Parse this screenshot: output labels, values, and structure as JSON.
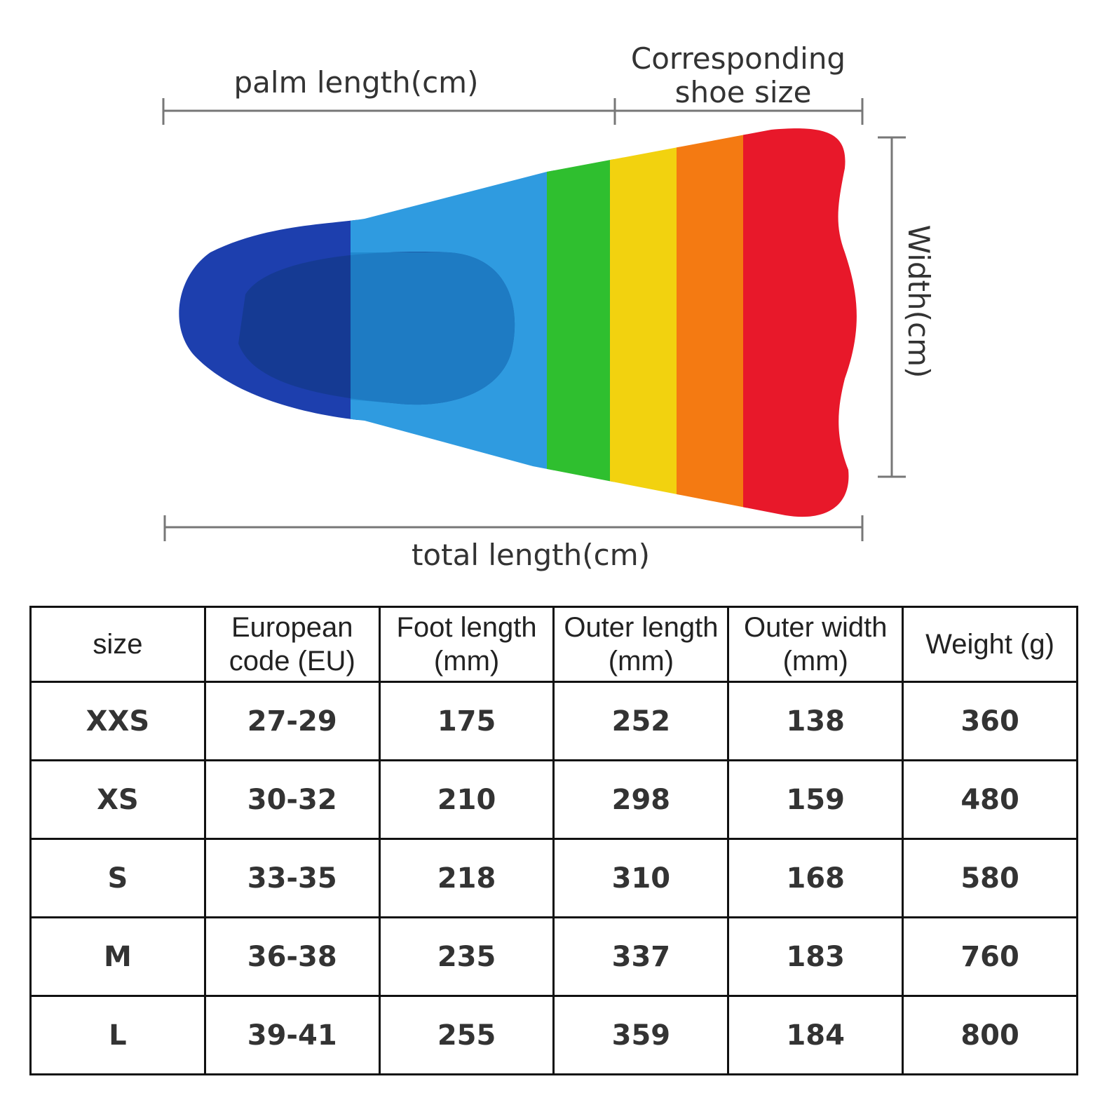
{
  "diagram": {
    "palm_label": "palm length(cm)",
    "shoe_label": [
      "Corresponding",
      "shoe size"
    ],
    "width_label": "Width(cm)",
    "total_label": "total length(cm)"
  },
  "table": {
    "header": [
      [
        "size"
      ],
      [
        "European",
        "code (EU)"
      ],
      [
        "Foot length",
        "(mm)"
      ],
      [
        "Outer length",
        "(mm)"
      ],
      [
        "Outer width",
        "(mm)"
      ],
      [
        "Weight (g)"
      ]
    ],
    "rows": [
      [
        "XXS",
        "27-29",
        175,
        252,
        138,
        360
      ],
      [
        "XS",
        "30-32",
        210,
        298,
        159,
        480
      ],
      [
        "S",
        "33-35",
        218,
        310,
        168,
        580
      ],
      [
        "M",
        "36-38",
        235,
        337,
        183,
        760
      ],
      [
        "L",
        "39-41",
        255,
        359,
        184,
        800
      ]
    ]
  }
}
